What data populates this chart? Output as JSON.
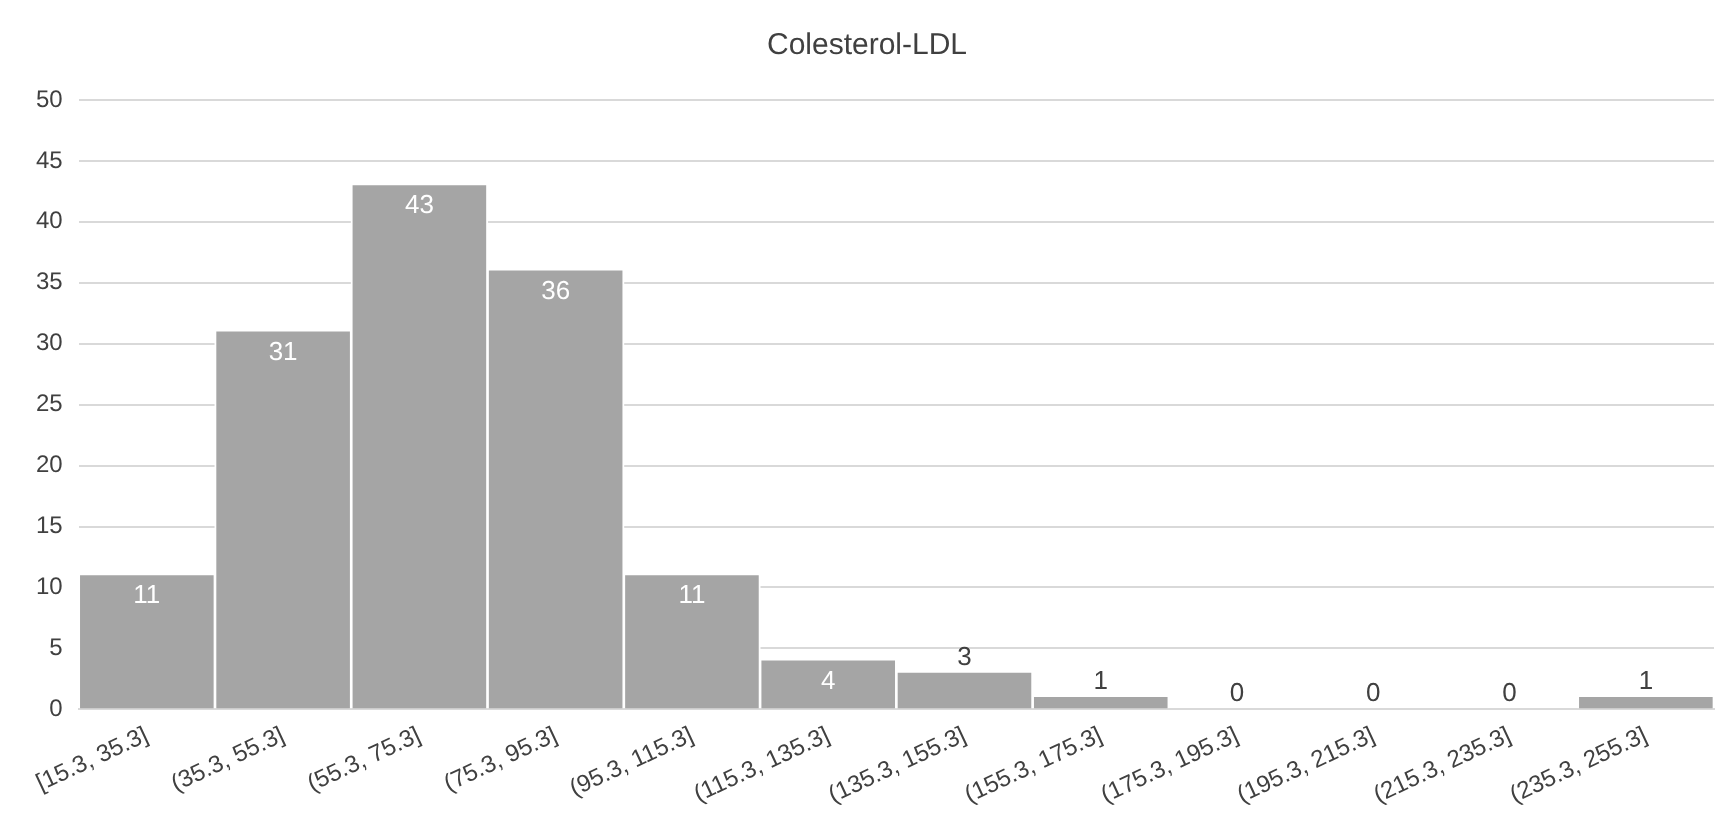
{
  "chart_data": {
    "type": "bar",
    "title": "Colesterol-LDL",
    "categories": [
      "[15.3, 35.3]",
      "(35.3, 55.3]",
      "(55.3, 75.3]",
      "(75.3, 95.3]",
      "(95.3, 115.3]",
      "(115.3, 135.3]",
      "(135.3, 155.3]",
      "(155.3, 175.3]",
      "(175.3, 195.3]",
      "(195.3, 215.3]",
      "(215.3, 235.3]",
      "(235.3, 255.3]"
    ],
    "values": [
      11,
      31,
      43,
      36,
      11,
      4,
      3,
      1,
      0,
      0,
      0,
      1
    ],
    "color": "#a5a5a5",
    "ylim": [
      0,
      50
    ],
    "yticks": [
      0,
      5,
      10,
      15,
      20,
      25,
      30,
      35,
      40,
      45,
      50
    ],
    "grid": "y",
    "data_labels": true,
    "legend": false
  }
}
